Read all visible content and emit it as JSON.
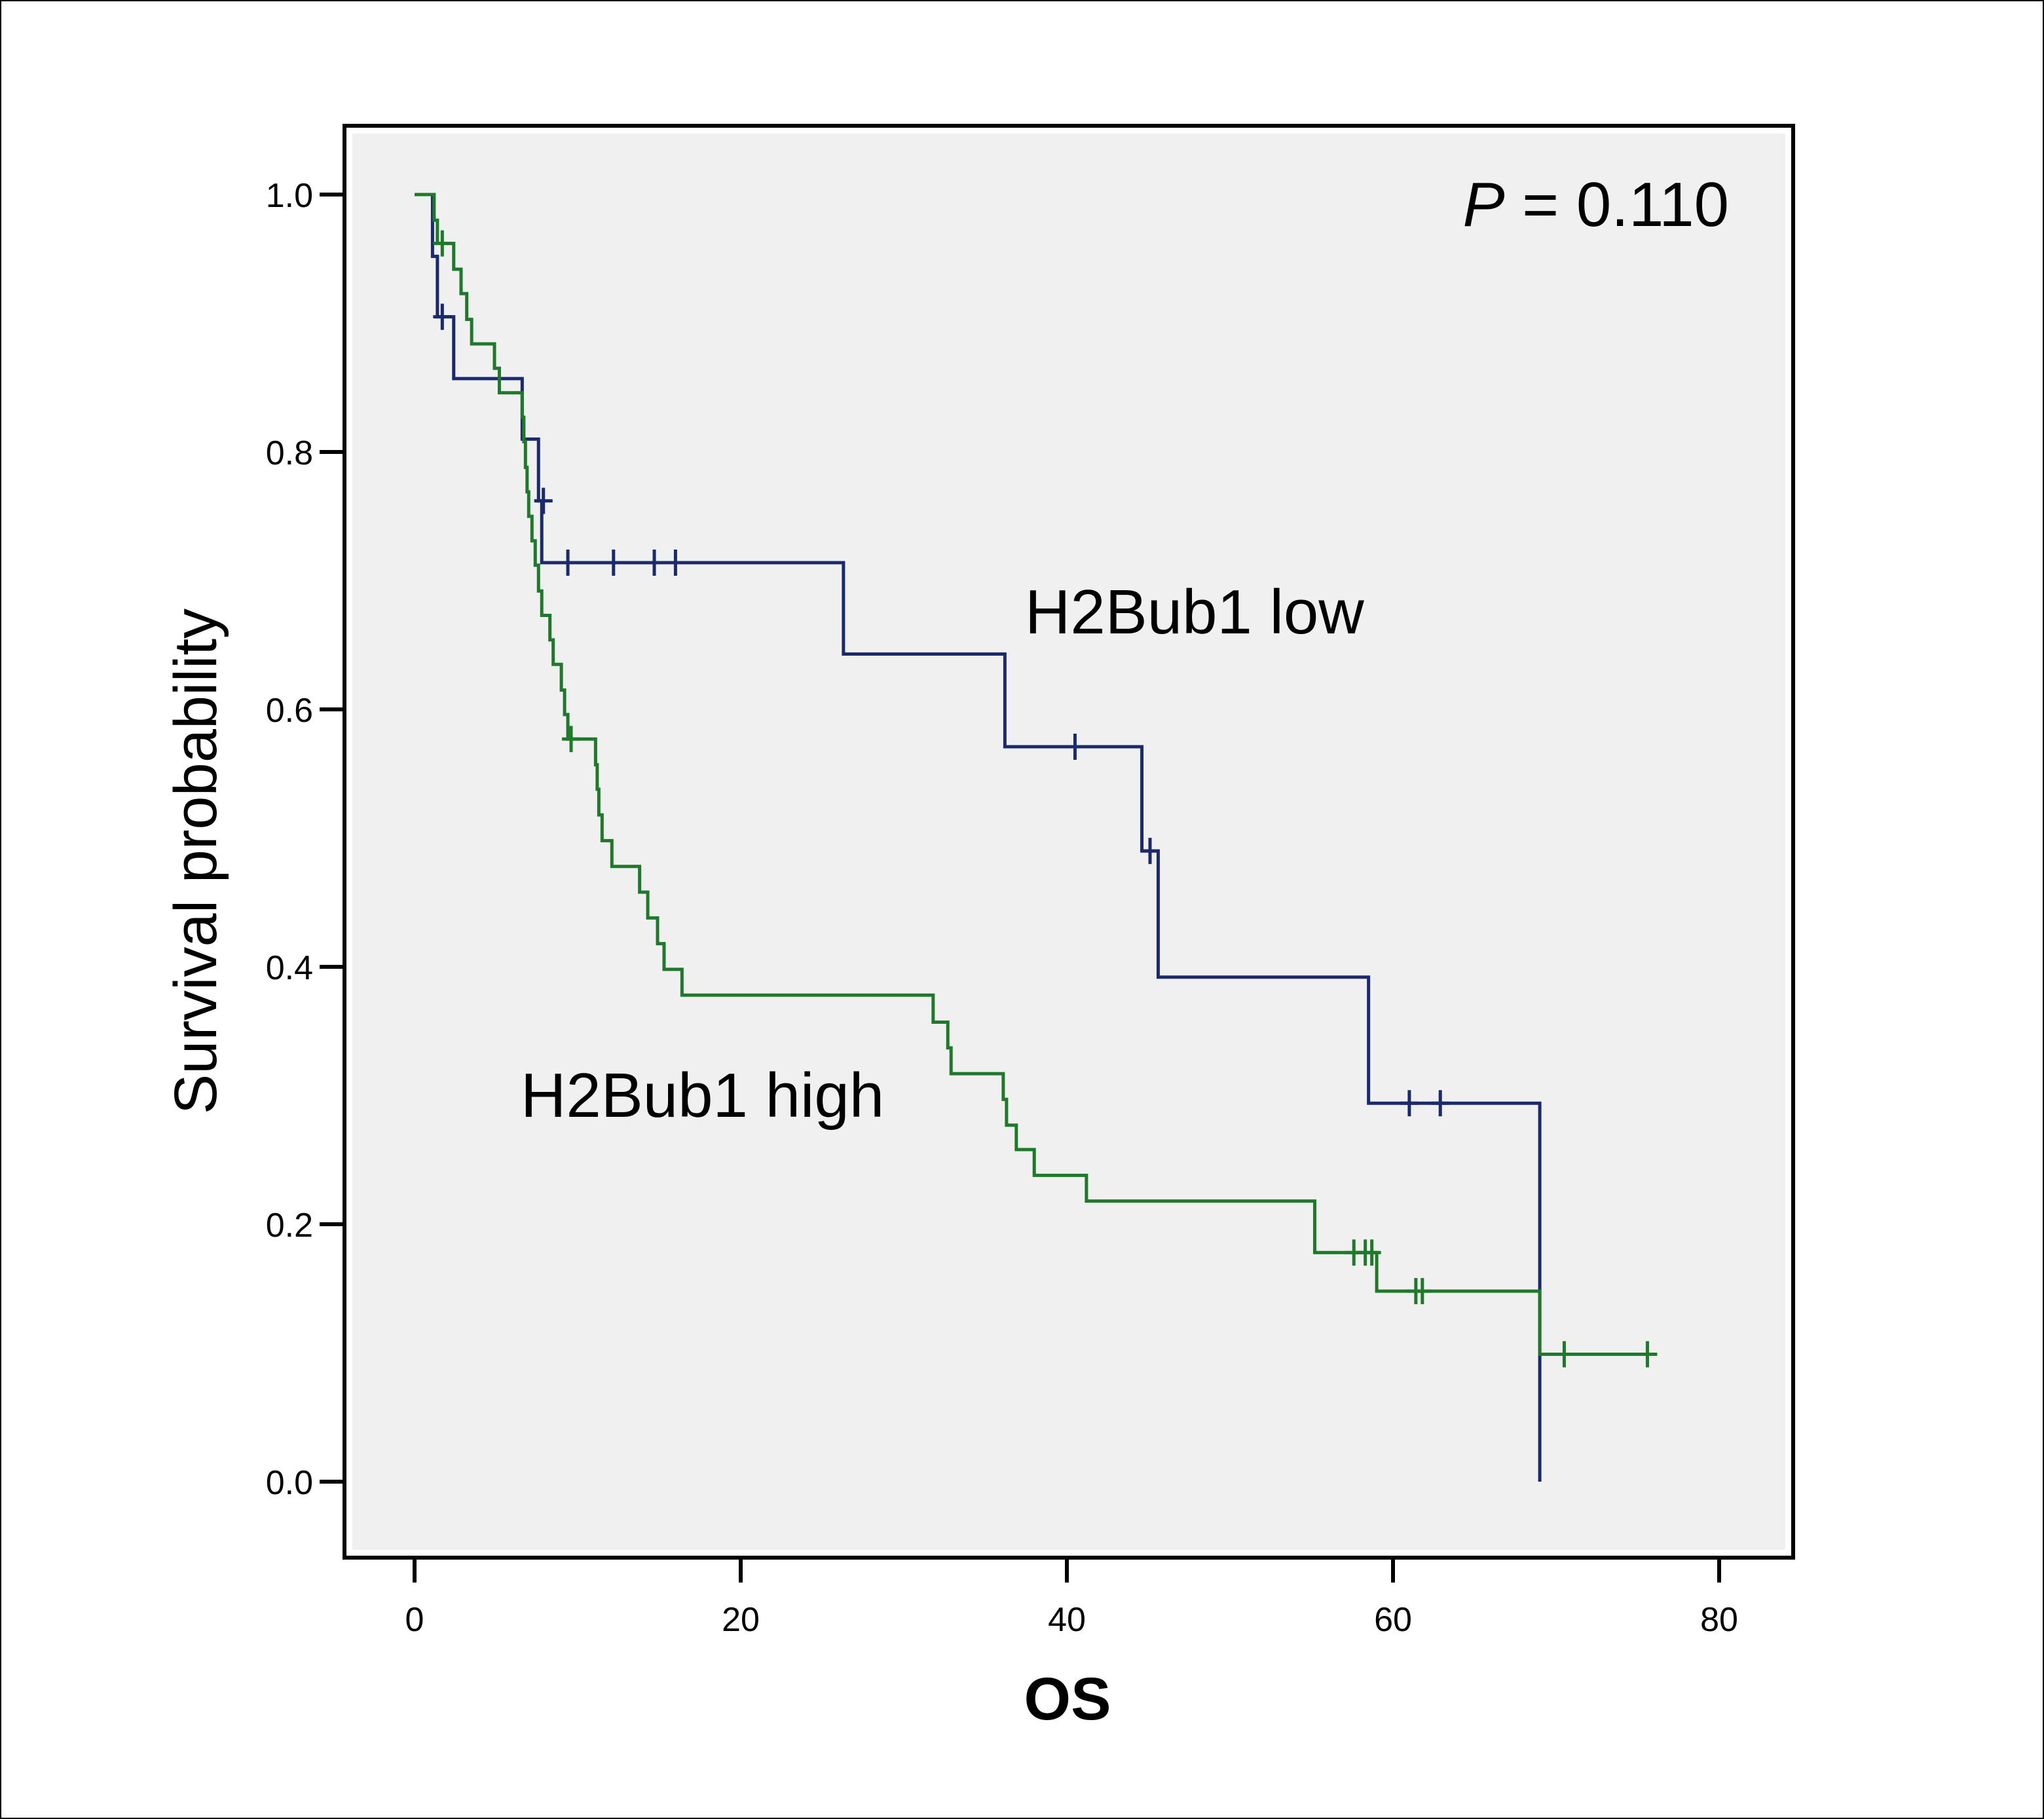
{
  "chart_data": {
    "type": "line",
    "subtype": "kaplan-meier-step",
    "title": "",
    "xlabel": "OS",
    "ylabel": "Survival probability",
    "xlim": [
      -4.5,
      84.5
    ],
    "ylim": [
      -0.11,
      1.065
    ],
    "x_ticks": [
      0,
      20,
      40,
      60,
      80
    ],
    "x_tick_labels": [
      "0",
      "20",
      "40",
      "60",
      "80"
    ],
    "y_ticks": [
      0.0,
      0.2,
      0.4,
      0.6,
      0.8,
      1.0
    ],
    "y_tick_labels": [
      "0.0",
      "0.2",
      "0.4",
      "0.6",
      "0.8",
      "1.0"
    ],
    "grid": false,
    "plot_background": "#f0f0f0",
    "annotations": {
      "p_label": "P",
      "p_rest": " = 0.110",
      "low_label": "H2Bub1 low",
      "high_label": "H2Bub1 high"
    },
    "series": [
      {
        "name": "H2Bub1 low",
        "color": "#1a2a6c",
        "steps": [
          [
            0,
            1.0
          ],
          [
            1.1,
            0.952
          ],
          [
            1.4,
            0.905
          ],
          [
            2.4,
            0.857
          ],
          [
            6.6,
            0.81
          ],
          [
            7.6,
            0.762
          ],
          [
            7.8,
            0.714
          ],
          [
            26.3,
            0.643
          ],
          [
            36.2,
            0.571
          ],
          [
            44.6,
            0.49
          ],
          [
            45.6,
            0.392
          ],
          [
            58.5,
            0.294
          ],
          [
            69.0,
            0.0
          ]
        ],
        "end_x": 69.0,
        "censored": [
          [
            1.7,
            0.905
          ],
          [
            7.9,
            0.762
          ],
          [
            9.4,
            0.714
          ],
          [
            12.2,
            0.714
          ],
          [
            14.7,
            0.714
          ],
          [
            16.0,
            0.714
          ],
          [
            40.5,
            0.571
          ],
          [
            45.1,
            0.49
          ],
          [
            61.0,
            0.294
          ],
          [
            62.9,
            0.294
          ]
        ]
      },
      {
        "name": "H2Bub1 high",
        "color": "#1e7a2a",
        "steps": [
          [
            0,
            1.0
          ],
          [
            1.2,
            0.98
          ],
          [
            1.4,
            0.962
          ],
          [
            2.4,
            0.942
          ],
          [
            2.85,
            0.923
          ],
          [
            3.2,
            0.903
          ],
          [
            3.5,
            0.884
          ],
          [
            4.9,
            0.865
          ],
          [
            5.2,
            0.846
          ],
          [
            6.6,
            0.827
          ],
          [
            6.7,
            0.808
          ],
          [
            6.8,
            0.788
          ],
          [
            6.9,
            0.769
          ],
          [
            7.0,
            0.75
          ],
          [
            7.2,
            0.731
          ],
          [
            7.4,
            0.712
          ],
          [
            7.6,
            0.692
          ],
          [
            7.8,
            0.673
          ],
          [
            8.3,
            0.654
          ],
          [
            8.5,
            0.635
          ],
          [
            9.0,
            0.615
          ],
          [
            9.2,
            0.596
          ],
          [
            9.4,
            0.577
          ],
          [
            11.1,
            0.557
          ],
          [
            11.2,
            0.538
          ],
          [
            11.3,
            0.518
          ],
          [
            11.5,
            0.498
          ],
          [
            12.1,
            0.478
          ],
          [
            13.8,
            0.458
          ],
          [
            14.3,
            0.438
          ],
          [
            14.9,
            0.418
          ],
          [
            15.3,
            0.398
          ],
          [
            16.4,
            0.378
          ],
          [
            31.8,
            0.357
          ],
          [
            32.7,
            0.337
          ],
          [
            32.9,
            0.317
          ],
          [
            36.1,
            0.297
          ],
          [
            36.3,
            0.277
          ],
          [
            36.9,
            0.258
          ],
          [
            38.0,
            0.238
          ],
          [
            41.2,
            0.218
          ],
          [
            55.2,
            0.178
          ],
          [
            59.0,
            0.148
          ],
          [
            69.0,
            0.099
          ]
        ],
        "end_x": 76.2,
        "censored": [
          [
            1.7,
            0.962
          ],
          [
            9.6,
            0.577
          ],
          [
            57.6,
            0.178
          ],
          [
            58.3,
            0.178
          ],
          [
            58.7,
            0.178
          ],
          [
            61.4,
            0.148
          ],
          [
            61.8,
            0.148
          ],
          [
            70.5,
            0.099
          ],
          [
            75.6,
            0.099
          ]
        ]
      }
    ]
  }
}
